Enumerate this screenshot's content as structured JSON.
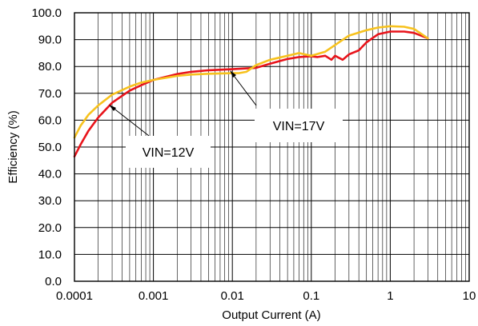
{
  "chart_data": {
    "type": "line",
    "title": "",
    "xlabel": "Output Current (A)",
    "ylabel": "Efficiency (%)",
    "x_scale": "log",
    "xlim": [
      0.0001,
      10
    ],
    "ylim": [
      0,
      100
    ],
    "grid": true,
    "x_ticks": [
      "0.0001",
      "0.001",
      "0.01",
      "0.1",
      "1",
      "10"
    ],
    "y_ticks": [
      "0.0",
      "10.0",
      "20.0",
      "30.0",
      "40.0",
      "50.0",
      "60.0",
      "70.0",
      "80.0",
      "90.0",
      "100.0"
    ],
    "series": [
      {
        "name": "VIN=12V",
        "color": "#e8141b",
        "x": [
          0.0001,
          0.00012,
          0.00015,
          0.0002,
          0.0003,
          0.0005,
          0.0007,
          0.001,
          0.002,
          0.003,
          0.005,
          0.01,
          0.02,
          0.03,
          0.05,
          0.07,
          0.1,
          0.12,
          0.15,
          0.18,
          0.2,
          0.25,
          0.3,
          0.4,
          0.5,
          0.7,
          1,
          1.5,
          2,
          3
        ],
        "values": [
          46.5,
          51,
          56,
          61,
          66.5,
          71,
          73,
          75,
          77.2,
          78,
          78.6,
          79,
          79.5,
          81,
          82.8,
          83.5,
          83.8,
          83.5,
          84,
          82.5,
          84,
          82.5,
          84.5,
          86,
          89,
          92,
          93,
          93,
          92.5,
          90.5
        ]
      },
      {
        "name": "VIN=17V",
        "color": "#f7c21e",
        "x": [
          0.0001,
          0.00012,
          0.00015,
          0.0002,
          0.0003,
          0.0005,
          0.0007,
          0.001,
          0.002,
          0.003,
          0.005,
          0.01,
          0.012,
          0.015,
          0.02,
          0.03,
          0.05,
          0.07,
          0.1,
          0.15,
          0.2,
          0.3,
          0.5,
          0.7,
          1,
          1.5,
          2,
          3
        ],
        "values": [
          53.5,
          58,
          62,
          65.5,
          69.5,
          72.5,
          74,
          75,
          76.5,
          77,
          77.3,
          77.5,
          77.5,
          78,
          80.5,
          82.5,
          84,
          85,
          84,
          85.5,
          88,
          91.5,
          93.5,
          94.5,
          95,
          94.8,
          94,
          90.5
        ]
      }
    ],
    "annotations": [
      {
        "text": "VIN=12V",
        "target_series": "VIN=12V"
      },
      {
        "text": "VIN=17V",
        "target_series": "VIN=17V"
      }
    ]
  }
}
